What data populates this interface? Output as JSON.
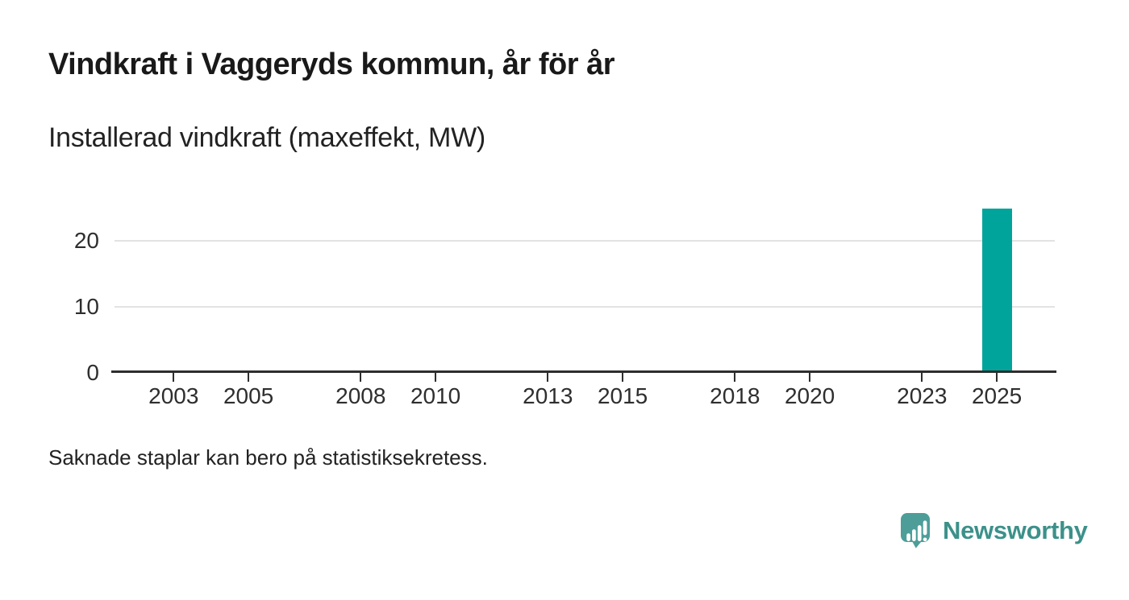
{
  "page": {
    "title": "Vindkraft i Vaggeryds kommun, år för år",
    "subtitle": "Installerad vindkraft (maxeffekt, MW)",
    "footnote": "Saknade staplar kan bero på statistiksekretess."
  },
  "branding": {
    "wordmark": "Newsworthy",
    "logo_icon": "speech-bubble-bar-chart-icon",
    "logo_mark_color": "#4d9e99",
    "logo_text_color": "#3c918a"
  },
  "colors": {
    "bar": "#00a49a",
    "axis_line": "#2e2e2e",
    "tick_mark": "#2e2e2e",
    "gridline": "#e3e3e3",
    "tick_label": "#2e2e2e"
  },
  "chart_data": {
    "type": "bar",
    "title": "Vindkraft i Vaggeryds kommun, år för år",
    "ylabel": "Installerad vindkraft (maxeffekt, MW)",
    "unit": "MW",
    "x_axis": {
      "min_year": 2002,
      "max_year": 2026,
      "tick_years": [
        2003,
        2005,
        2008,
        2010,
        2013,
        2015,
        2018,
        2020,
        2023,
        2025
      ]
    },
    "y_axis": {
      "ticks": [
        0,
        10,
        20
      ],
      "ylim": [
        0,
        25.5
      ],
      "grid": "horizontal"
    },
    "series": [
      {
        "name": "Installerad vindkraft (maxeffekt, MW)",
        "points": [
          {
            "year": 2025,
            "value": 25
          }
        ]
      }
    ],
    "note": "Saknade staplar kan bero på statistiksekretess."
  }
}
